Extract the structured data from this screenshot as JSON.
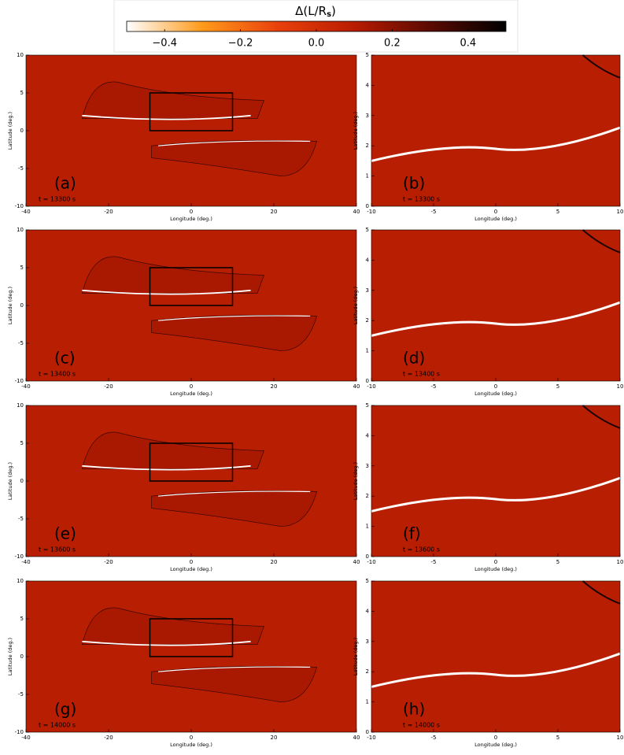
{
  "chart_data": [
    {
      "type": "colorbar",
      "title": "Δ(L/R",
      "title_subscript": "s",
      "title_end": ")",
      "xlim": [
        -0.5,
        0.5
      ],
      "xticks": [
        {
          "value": -0.4,
          "label": "−0.4"
        },
        {
          "value": -0.2,
          "label": "−0.2"
        },
        {
          "value": 0,
          "label": "0.0"
        },
        0.2,
        0.4
      ],
      "colors": [
        "#ffffff",
        "#ff9a1a",
        "#e8400c",
        "#b81c00",
        "#5a0a00",
        "#000000"
      ]
    },
    {
      "type": "image",
      "panel_label": "(a)",
      "annotation": "t = 13300 s",
      "x_label": "Longitude (deg.)",
      "y_label": "Latitude (deg.)",
      "xlim": [
        -40,
        40
      ],
      "xticks": [
        -40,
        -20,
        0,
        20,
        40
      ],
      "ylim": [
        -10,
        10
      ],
      "yticks": [
        -10,
        -5,
        0,
        5,
        10
      ],
      "color": "#b81e02",
      "zoom_box": {
        "x": [
          -10,
          10
        ],
        "y": [
          0,
          5
        ]
      }
    },
    {
      "type": "image",
      "panel_label": "(b)",
      "annotation": "t = 13300 s",
      "x_label": "Longitude (deg.)",
      "y_label": "Latitude (deg.)",
      "xlim": [
        -10,
        10
      ],
      "xticks": [
        -10,
        -5,
        0,
        5,
        10
      ],
      "ylim": [
        0,
        5
      ],
      "yticks": [
        0,
        1,
        2,
        3,
        4,
        5
      ],
      "color": "#b81e02"
    },
    {
      "type": "image",
      "panel_label": "(c)",
      "annotation": "t = 13400 s",
      "x_label": "Longitude (deg.)",
      "y_label": "Latitude (deg.)",
      "xlim": [
        -40,
        40
      ],
      "xticks": [
        -40,
        -20,
        0,
        20,
        40
      ],
      "ylim": [
        -10,
        10
      ],
      "yticks": [
        -10,
        -5,
        0,
        5,
        10
      ],
      "color": "#b81e02",
      "zoom_box": {
        "x": [
          -10,
          10
        ],
        "y": [
          0,
          5
        ]
      }
    },
    {
      "type": "image",
      "panel_label": "(d)",
      "annotation": "t = 13400 s",
      "x_label": "Longitude (deg.)",
      "y_label": "Latitude (deg.)",
      "xlim": [
        -10,
        10
      ],
      "xticks": [
        -10,
        -5,
        0,
        5,
        10
      ],
      "ylim": [
        0,
        5
      ],
      "yticks": [
        0,
        1,
        2,
        3,
        4,
        5
      ],
      "color": "#b81e02"
    },
    {
      "type": "image",
      "panel_label": "(e)",
      "annotation": "t = 13600 s",
      "x_label": "Longitude (deg.)",
      "y_label": "Latitude (deg.)",
      "xlim": [
        -40,
        40
      ],
      "xticks": [
        -40,
        -20,
        0,
        20,
        40
      ],
      "ylim": [
        -10,
        10
      ],
      "yticks": [
        -10,
        -5,
        0,
        5,
        10
      ],
      "color": "#b81e02",
      "zoom_box": {
        "x": [
          -10,
          10
        ],
        "y": [
          0,
          5
        ]
      }
    },
    {
      "type": "image",
      "panel_label": "(f)",
      "annotation": "t = 13600 s",
      "x_label": "Longitude (deg.)",
      "y_label": "Latitude (deg.)",
      "xlim": [
        -10,
        10
      ],
      "xticks": [
        -10,
        -5,
        0,
        5,
        10
      ],
      "ylim": [
        0,
        5
      ],
      "yticks": [
        0,
        1,
        2,
        3,
        4,
        5
      ],
      "color": "#b81e02"
    },
    {
      "type": "image",
      "panel_label": "(g)",
      "annotation": "t = 14000 s",
      "x_label": "Longitude (deg.)",
      "y_label": "Latitude (deg.)",
      "xlim": [
        -40,
        40
      ],
      "xticks": [
        -40,
        -20,
        0,
        20,
        40
      ],
      "ylim": [
        -10,
        10
      ],
      "yticks": [
        -10,
        -5,
        0,
        5,
        10
      ],
      "color": "#b81e02",
      "zoom_box": {
        "x": [
          -10,
          10
        ],
        "y": [
          0,
          5
        ]
      }
    },
    {
      "type": "image",
      "panel_label": "(h)",
      "annotation": "t = 14000 s",
      "x_label": "Longitude (deg.)",
      "y_label": "Latitude (deg.)",
      "xlim": [
        -10,
        10
      ],
      "xticks": [
        -10,
        -5,
        0,
        5,
        10
      ],
      "ylim": [
        0,
        5
      ],
      "yticks": [
        0,
        1,
        2,
        3,
        4,
        5
      ],
      "color": "#b81e02"
    }
  ]
}
